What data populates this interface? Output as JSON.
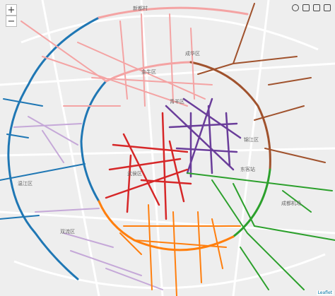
{
  "map": {
    "zoom_in": "+",
    "zoom_out": "−",
    "attribution": "Leaflet",
    "labels": [
      "新都村",
      "金牛区",
      "成华区",
      "青羊区",
      "锦江区",
      "武侯区",
      "东客站",
      "成都机场",
      "双流区",
      "温江区"
    ]
  }
}
